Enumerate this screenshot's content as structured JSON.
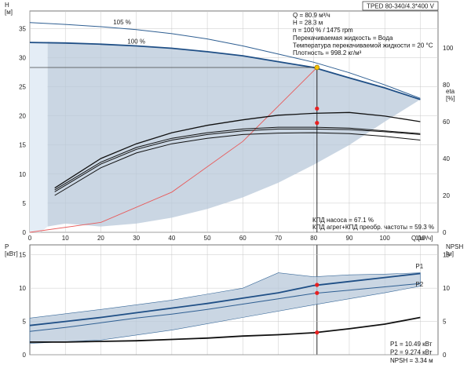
{
  "chart_data": [
    {
      "type": "line",
      "panel": "pump-head-efficiency",
      "title_box": "TPED 80-340/4.3*400 V",
      "y_label": "H",
      "y_unit": "[м]",
      "y2_label": "eta",
      "y2_unit": "[%]",
      "x_label": "Q",
      "x_unit": "[м³/ч]",
      "xlim": [
        0,
        115
      ],
      "ylim": [
        0,
        38
      ],
      "y2lim": [
        0,
        120
      ],
      "x_ticks": [
        "0",
        "10",
        "20",
        "30",
        "40",
        "50",
        "60",
        "70",
        "80",
        "90",
        "100",
        "110"
      ],
      "y_ticks": [
        "0",
        "5",
        "10",
        "15",
        "20",
        "25",
        "30",
        "35"
      ],
      "y2_ticks": [
        "0",
        "20",
        "40",
        "60",
        "80",
        "100"
      ],
      "duty_info": [
        "Q = 80.9 м³/ч",
        "H = 28.3 м",
        "n = 100 % / 1475 rpm",
        "Перекачиваемая жидкость = Вода",
        "Температура перекачиваемой жидкости = 20 °C",
        "Плотность = 998.2 кг/м³"
      ],
      "efficiency_info": [
        "КПД насоса = 67.1 %",
        "КПД агрег+КПД преобр. частоты = 59.3 %"
      ],
      "curve_labels": [
        "105 %",
        "100 %"
      ],
      "curve_105": {
        "x": [
          0,
          10,
          20,
          30,
          40,
          50,
          60,
          70,
          80,
          90,
          100,
          110
        ],
        "y": [
          36.0,
          35.7,
          35.3,
          34.8,
          34.1,
          33.2,
          32.0,
          30.6,
          29.2,
          27.4,
          25.3,
          23.0
        ]
      },
      "curve_100": {
        "x": [
          0,
          10,
          20,
          30,
          40,
          50,
          60,
          70,
          80,
          90,
          100,
          110
        ],
        "y": [
          32.6,
          32.5,
          32.3,
          32.0,
          31.6,
          31.0,
          30.3,
          29.3,
          28.3,
          26.5,
          24.8,
          22.8
        ]
      },
      "operating_region": {
        "x": [
          5,
          10,
          20,
          30,
          40,
          50,
          60,
          70,
          80,
          90,
          100,
          110
        ],
        "y": [
          32.7,
          32.6,
          32.3,
          32.0,
          31.6,
          31.0,
          30.3,
          29.3,
          28.3,
          26.5,
          24.8,
          22.8
        ],
        "lower_x": [
          110,
          100,
          90,
          80,
          70,
          60,
          50,
          40,
          30,
          20,
          10,
          5
        ],
        "lower_y": [
          22.8,
          19.0,
          15.0,
          11.6,
          8.5,
          6.0,
          4.0,
          2.5,
          1.5,
          1.0,
          1.5,
          1.0
        ]
      },
      "system_curve": {
        "x": [
          0,
          20,
          40,
          60,
          80.9
        ],
        "y": [
          0,
          1.7,
          6.9,
          15.6,
          28.3
        ]
      },
      "eta_curves": [
        {
          "x": [
            7,
            20,
            30,
            40,
            50,
            60,
            70,
            80,
            90,
            100,
            110
          ],
          "y": [
            20,
            35,
            43,
            48,
            51,
            53,
            53.8,
            54,
            53.5,
            52,
            50
          ]
        },
        {
          "x": [
            7,
            20,
            30,
            40,
            50,
            60,
            70,
            80,
            90,
            100,
            110
          ],
          "y": [
            22,
            37,
            45,
            50,
            53,
            55,
            56,
            56,
            55.7,
            54.5,
            53
          ]
        },
        {
          "x": [
            7,
            20,
            30,
            40,
            50,
            60,
            70,
            80,
            90,
            100,
            110
          ],
          "y": [
            23,
            38,
            46,
            51,
            54,
            56,
            57,
            57,
            56.5,
            55,
            53.5
          ]
        },
        {
          "x": [
            7,
            20,
            30,
            40,
            50,
            60,
            70,
            80,
            90,
            100,
            110
          ],
          "y": [
            24,
            40,
            48,
            54,
            58,
            61,
            63.5,
            64.5,
            65,
            63,
            60
          ]
        }
      ],
      "eta_points": [
        {
          "x": 80.9,
          "y2": 67.1
        },
        {
          "x": 80.9,
          "y2": 59.3
        }
      ],
      "duty_point": {
        "x": 80.9,
        "y": 28.3
      }
    },
    {
      "type": "line",
      "panel": "power-npsh",
      "y_label": "P",
      "y_unit": "[кВт]",
      "y2_label": "NPSH",
      "y2_unit": "[м]",
      "xlim": [
        0,
        115
      ],
      "ylim": [
        0,
        16.5
      ],
      "y_ticks": [
        "0",
        "5",
        "10",
        "15"
      ],
      "y2_ticks": [
        "0",
        "5",
        "10",
        "15"
      ],
      "series_labels": [
        "P1",
        "P2"
      ],
      "p1": {
        "x": [
          0,
          10,
          20,
          30,
          40,
          50,
          60,
          70,
          80,
          90,
          100,
          110
        ],
        "y": [
          4.4,
          5.0,
          5.6,
          6.3,
          7.0,
          7.7,
          8.5,
          9.3,
          10.4,
          11.0,
          11.6,
          12.2
        ]
      },
      "p2": {
        "x": [
          0,
          10,
          20,
          30,
          40,
          50,
          60,
          70,
          80,
          90,
          100,
          110
        ],
        "y": [
          3.5,
          4.1,
          4.8,
          5.5,
          6.1,
          6.8,
          7.6,
          8.4,
          9.2,
          9.7,
          10.2,
          10.7
        ]
      },
      "npsh": {
        "x": [
          0,
          10,
          20,
          30,
          40,
          50,
          60,
          70,
          80,
          90,
          100,
          110
        ],
        "y": [
          1.9,
          1.9,
          2.0,
          2.1,
          2.3,
          2.5,
          2.8,
          3.0,
          3.3,
          3.9,
          4.6,
          5.6
        ]
      },
      "p_band_upper": {
        "x": [
          0,
          20,
          40,
          60,
          70,
          80,
          90,
          100,
          110
        ],
        "y": [
          5.5,
          6.8,
          8.2,
          10.0,
          12.3,
          11.7,
          12.0,
          12.1,
          12.3
        ]
      },
      "p_band_lower": {
        "x": [
          110,
          100,
          90,
          80,
          60,
          40,
          20,
          0
        ],
        "y": [
          10.3,
          9.3,
          8.4,
          7.5,
          5.6,
          3.7,
          2.2,
          1.7
        ]
      },
      "points": [
        {
          "x": 80.9,
          "y": 10.49
        },
        {
          "x": 80.9,
          "y": 9.274
        },
        {
          "x": 80.9,
          "y": 3.34
        }
      ],
      "values_info": [
        "P1 = 10.49 кВт",
        "P2 = 9.274 кВт",
        "NPSH = 3.34 м"
      ]
    }
  ]
}
